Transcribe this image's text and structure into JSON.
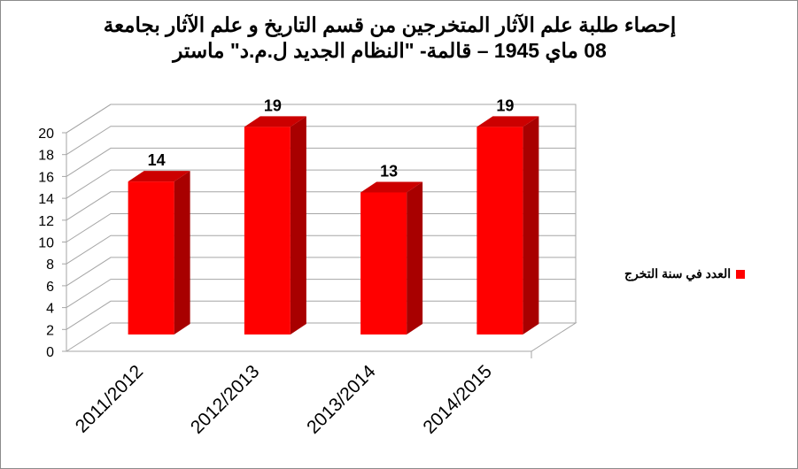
{
  "title": {
    "line1": "إحصاء طلبة علم الآثار المتخرجين من قسم التاريخ و علم الآثار بجامعة",
    "line2": "08 ماي 1945 – قالمة- \"النظام الجديد ل.م.د\"  ماستر"
  },
  "legend": {
    "label": "العدد في سنة التخرج"
  },
  "colors": {
    "bar_front": "#ff0000",
    "bar_side": "#a80000",
    "bar_top": "#cc0000",
    "grid": "#a6a6a6"
  },
  "chart_data": {
    "type": "bar",
    "categories": [
      "2011/2012",
      "2012/2013",
      "2013/2014",
      "2014/2015"
    ],
    "series": [
      {
        "name": "العدد في سنة التخرج",
        "values": [
          14,
          19,
          13,
          19
        ]
      }
    ],
    "ylim": [
      0,
      20
    ],
    "yticks": [
      0,
      2,
      4,
      6,
      8,
      10,
      12,
      14,
      16,
      18,
      20
    ],
    "data_labels": true,
    "legend_position": "right",
    "style": "3d"
  }
}
